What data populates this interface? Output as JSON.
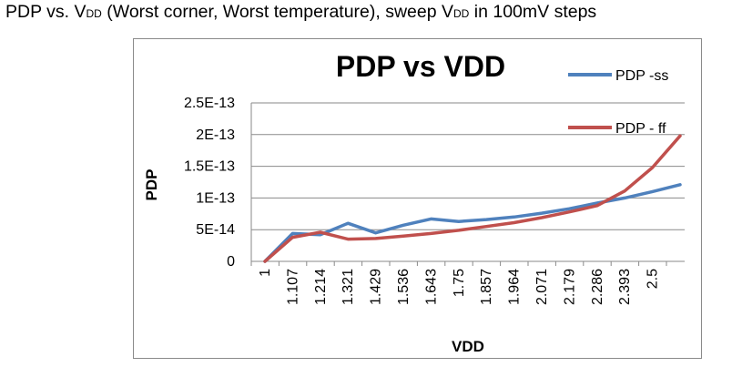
{
  "caption": {
    "part1": "PDP vs. V",
    "sub1": "DD",
    "part2": " (Worst corner, Worst temperature), sweep V",
    "sub2": "DD",
    "part3": " in 100mV steps"
  },
  "chart_data": {
    "type": "line",
    "title": "PDP vs VDD",
    "xlabel": "VDD",
    "ylabel": "PDP",
    "categories": [
      "1",
      "1.107",
      "1.214",
      "1.321",
      "1.429",
      "1.536",
      "1.643",
      "1.75",
      "1.857",
      "1.964",
      "2.071",
      "2.179",
      "2.286",
      "2.393",
      "2.5",
      ""
    ],
    "y_ticks": [
      "0",
      "5E-14",
      "1E-13",
      "1.5E-13",
      "2E-13",
      "2.5E-13"
    ],
    "ylim": [
      0,
      2.5e-13
    ],
    "grid": "horizontal",
    "legend": "right",
    "series": [
      {
        "name": "PDP -ss",
        "color": "#4f81bd",
        "values": [
          0,
          4.4e-14,
          4.2e-14,
          6e-14,
          4.5e-14,
          5.7e-14,
          6.7e-14,
          6.3e-14,
          6.6e-14,
          7e-14,
          7.6e-14,
          8.3e-14,
          9.2e-14,
          1e-13,
          1.1e-13,
          1.21e-13
        ]
      },
      {
        "name": "PDP - ff",
        "color": "#c0504d",
        "values": [
          0,
          3.8e-14,
          4.6e-14,
          3.5e-14,
          3.6e-14,
          4e-14,
          4.4e-14,
          4.9e-14,
          5.5e-14,
          6.1e-14,
          6.9e-14,
          7.8e-14,
          8.8e-14,
          1.11e-13,
          1.48e-13,
          1.98e-13
        ]
      }
    ]
  }
}
